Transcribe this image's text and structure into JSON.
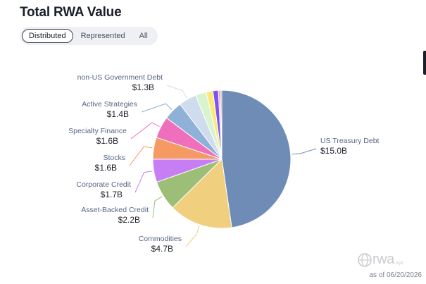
{
  "header": {
    "title": "Total RWA Value"
  },
  "tabs": [
    {
      "label": "Distributed",
      "active": true
    },
    {
      "label": "Represented",
      "active": false
    },
    {
      "label": "All",
      "active": false
    }
  ],
  "chart_data": {
    "type": "pie",
    "title": "Total RWA Value",
    "start": "top, clockwise",
    "slices": [
      {
        "name": "US Treasury Debt",
        "value_label": "$15.0B",
        "value": 15.0,
        "color": "#6f8cb6"
      },
      {
        "name": "Commodities",
        "value_label": "$4.7B",
        "value": 4.7,
        "color": "#f0cf7e"
      },
      {
        "name": "Asset-Backed Credit",
        "value_label": "$2.2B",
        "value": 2.2,
        "color": "#9cbe77"
      },
      {
        "name": "Corporate Credit",
        "value_label": "$1.7B",
        "value": 1.7,
        "color": "#c77df3"
      },
      {
        "name": "Stocks",
        "value_label": "$1.6B",
        "value": 1.6,
        "color": "#f59a62"
      },
      {
        "name": "Specialty Finance",
        "value_label": "$1.6B",
        "value": 1.6,
        "color": "#ef6fbd"
      },
      {
        "name": "Active Strategies",
        "value_label": "$1.4B",
        "value": 1.4,
        "color": "#8fb1d8"
      },
      {
        "name": "non-US Government Debt",
        "value_label": "$1.3B",
        "value": 1.3,
        "color": "#cfdcee"
      },
      {
        "name": "",
        "value": 0.8,
        "color": "#d9f3cf"
      },
      {
        "name": "",
        "value": 0.5,
        "color": "#fbe97a"
      },
      {
        "name": "",
        "value": 0.4,
        "color": "#7d54f2"
      },
      {
        "name": "",
        "value": 0.15,
        "color": "#f2a3a3"
      },
      {
        "name": "",
        "value": 0.1,
        "color": "#9aa7c3"
      }
    ]
  },
  "footer": {
    "brand": "rwa",
    "brand_suffix": ".xyz",
    "as_of": "as of 06/20/2026"
  }
}
